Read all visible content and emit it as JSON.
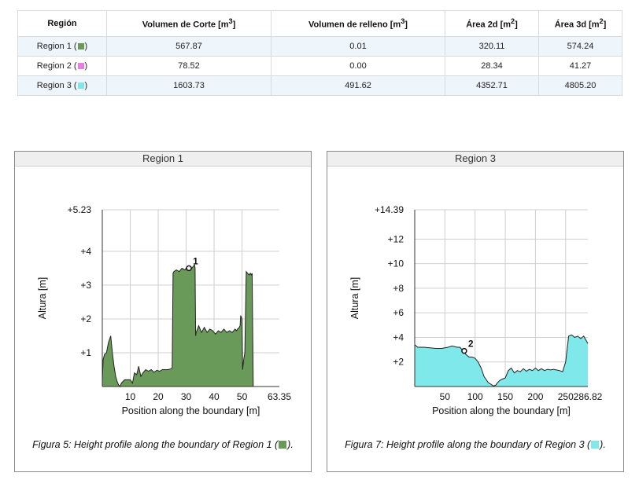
{
  "table": {
    "headers": {
      "region": "Región",
      "cut_base": "Volumen de Corte [m",
      "fill_base": "Volumen de relleno [m",
      "area2d_base": "Área 2d [m",
      "area3d_base": "Área 3d [m",
      "cube": "3",
      "square": "2",
      "close": "]"
    },
    "rows": [
      {
        "name": "Region 1 (",
        "color": "#6a9a5a",
        "cut": "567.87",
        "fill": "0.01",
        "area2d": "320.11",
        "area3d": "574.24"
      },
      {
        "name": "Region 2 (",
        "color": "#e87fe0",
        "cut": "78.52",
        "fill": "0.00",
        "area2d": "28.34",
        "area3d": "41.27"
      },
      {
        "name": "Region 3 (",
        "color": "#7ee8ea",
        "cut": "1603.73",
        "fill": "491.62",
        "area2d": "4352.71",
        "area3d": "4805.20"
      }
    ],
    "row_close": ")"
  },
  "figures": [
    {
      "title": "Region 1",
      "caption_base": "Figura 5: Height profile along the boundary of Region 1 (",
      "caption_close": ").",
      "swatch_color": "#6a9a5a",
      "chart_data": {
        "type": "area",
        "fill_color": "#6a9a5a",
        "ylabel": "Altura [m]",
        "xlabel": "Position along the boundary [m]",
        "xlim": [
          0,
          63.35
        ],
        "ylim": [
          0,
          5.23
        ],
        "x_ticks": [
          10,
          20,
          30,
          40,
          50,
          63.35
        ],
        "x_tick_labels": [
          "10",
          "20",
          "30",
          "40",
          "50",
          "63.35"
        ],
        "y_ticks": [
          1,
          2,
          3,
          4,
          5.23
        ],
        "y_tick_labels": [
          "+1",
          "+2",
          "+3",
          "+4",
          "+5.23"
        ],
        "marker": {
          "label": "1",
          "x": 31.0,
          "y": 3.5
        },
        "x": [
          0,
          0.3,
          0.8,
          1.5,
          2.2,
          3.0,
          3.6,
          4.2,
          4.8,
          5.3,
          5.8,
          6.3,
          6.8,
          7.4,
          8.0,
          9.0,
          10.0,
          10.8,
          11.5,
          12.3,
          13.0,
          13.8,
          14.5,
          15.5,
          16.5,
          17.5,
          18.5,
          19.5,
          20.5,
          21.5,
          22.5,
          23.5,
          24.5,
          25.0,
          25.3,
          25.6,
          26.5,
          27.5,
          28.5,
          29.5,
          30.0,
          30.5,
          31.0,
          31.5,
          32.0,
          32.5,
          33.0,
          33.2,
          33.4,
          33.6,
          34.5,
          35.5,
          36.5,
          37.5,
          38.5,
          39.5,
          40.5,
          41.5,
          42.5,
          43.5,
          44.5,
          45.5,
          46.5,
          47.5,
          48.0,
          48.4,
          48.7,
          49.0,
          49.3,
          49.5,
          50.0,
          50.2,
          50.6,
          51.0,
          51.5,
          52.0,
          52.5,
          53.0,
          53.3,
          53.6,
          54.0,
          63.35
        ],
        "y": [
          0.2,
          0.8,
          0.95,
          1.0,
          1.3,
          1.5,
          1.0,
          0.6,
          0.3,
          0.15,
          0.05,
          0.0,
          0.1,
          0.15,
          0.2,
          0.2,
          0.2,
          0.1,
          0.4,
          0.35,
          0.6,
          0.3,
          0.4,
          0.5,
          0.45,
          0.5,
          0.42,
          0.48,
          0.45,
          0.5,
          0.5,
          0.5,
          0.52,
          0.55,
          3.35,
          3.4,
          3.45,
          3.4,
          3.5,
          3.45,
          3.5,
          3.48,
          3.55,
          3.5,
          3.5,
          3.55,
          3.6,
          3.5,
          1.5,
          1.6,
          1.8,
          1.6,
          1.75,
          1.6,
          1.7,
          1.65,
          1.55,
          1.65,
          1.6,
          1.7,
          1.6,
          1.65,
          1.6,
          1.7,
          1.65,
          1.7,
          1.72,
          1.75,
          1.8,
          2.1,
          2.0,
          0.5,
          0.8,
          1.0,
          3.4,
          3.35,
          3.3,
          3.35,
          3.3,
          3.35,
          0.0,
          0.0
        ]
      }
    },
    {
      "title": "Region 3",
      "caption_base": "Figura 7: Height profile along the boundary of Region 3 (",
      "caption_close": ").",
      "swatch_color": "#7ee8ea",
      "chart_data": {
        "type": "area",
        "fill_color": "#7ee8ea",
        "ylabel": "Altura [m]",
        "xlabel": "Position along the boundary [m]",
        "xlim": [
          0,
          286.82
        ],
        "ylim": [
          0,
          14.39
        ],
        "x_ticks": [
          50,
          100,
          150,
          200,
          250,
          286.82
        ],
        "x_tick_labels": [
          "50",
          "100",
          "150",
          "200",
          "250",
          "286.82"
        ],
        "y_ticks": [
          2,
          4,
          6,
          8,
          10,
          12,
          14.39
        ],
        "y_tick_labels": [
          "+2",
          "+4",
          "+6",
          "+8",
          "+10",
          "+12",
          "+14.39"
        ],
        "marker": {
          "label": "2",
          "x": 82.0,
          "y": 2.9
        },
        "x": [
          0,
          5,
          15,
          25,
          35,
          45,
          55,
          62,
          70,
          75,
          80,
          85,
          90,
          95,
          100,
          105,
          110,
          115,
          118,
          122,
          126,
          130,
          134,
          137,
          141,
          145,
          150,
          155,
          160,
          165,
          170,
          175,
          180,
          185,
          190,
          195,
          200,
          205,
          210,
          215,
          220,
          225,
          230,
          240,
          245,
          250,
          255,
          260,
          265,
          270,
          275,
          280,
          286.82
        ],
        "y": [
          3.4,
          3.2,
          3.2,
          3.15,
          3.1,
          3.1,
          3.2,
          3.3,
          3.2,
          3.2,
          2.9,
          2.6,
          2.4,
          2.4,
          2.3,
          2.0,
          1.5,
          0.8,
          0.6,
          0.3,
          0.2,
          0.05,
          0.1,
          0.3,
          0.5,
          0.6,
          0.7,
          1.3,
          1.5,
          1.1,
          1.3,
          1.2,
          1.45,
          1.25,
          1.4,
          1.3,
          1.5,
          1.3,
          1.45,
          1.3,
          1.4,
          1.35,
          1.4,
          1.3,
          1.2,
          2.0,
          4.1,
          4.2,
          4.0,
          4.1,
          3.9,
          4.1,
          3.5
        ]
      }
    }
  ]
}
